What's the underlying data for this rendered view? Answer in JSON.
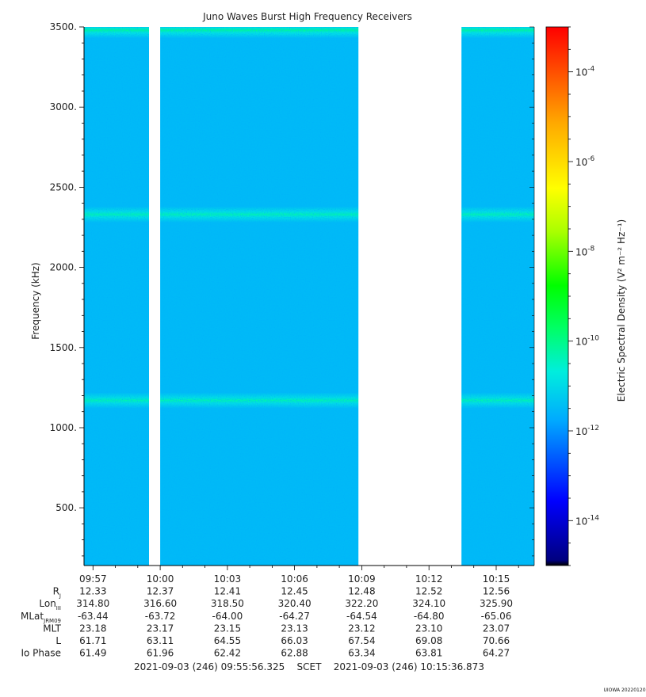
{
  "chart_data": {
    "type": "heatmap",
    "title": "Juno Waves Burst High Frequency Receivers",
    "ylabel": "Frequency (kHz)",
    "ylim": [
      140,
      3500
    ],
    "yticks": [
      {
        "value": 500,
        "label": "500."
      },
      {
        "value": 1000,
        "label": "1000."
      },
      {
        "value": 1500,
        "label": "1500."
      },
      {
        "value": 2000,
        "label": "2000."
      },
      {
        "value": 2500,
        "label": "2500."
      },
      {
        "value": 3000,
        "label": "3000."
      },
      {
        "value": 3500,
        "label": "3500."
      }
    ],
    "x_range_min": [
      56.6,
      76.7
    ],
    "xticks": [
      {
        "minute": 57,
        "label": "09:57"
      },
      {
        "minute": 60,
        "label": "10:00"
      },
      {
        "minute": 63,
        "label": "10:03"
      },
      {
        "minute": 66,
        "label": "10:06"
      },
      {
        "minute": 69,
        "label": "10:09"
      },
      {
        "minute": 72,
        "label": "10:12"
      },
      {
        "minute": 75,
        "label": "10:15"
      }
    ],
    "data_intervals_min": [
      [
        56.6,
        59.5
      ],
      [
        60.0,
        68.85
      ],
      [
        73.45,
        76.7
      ]
    ],
    "background_level_log10": -11.5,
    "emission_lines": [
      {
        "freq_khz": 1170,
        "level_log10": -10.3
      },
      {
        "freq_khz": 2330,
        "level_log10": -10.3
      },
      {
        "freq_khz": 3480,
        "level_log10": -10.1
      }
    ],
    "colorbar": {
      "label": "Electric Spectral Density (V² m⁻² Hz⁻¹)",
      "range_log10": [
        -15,
        -3
      ],
      "ticks": [
        {
          "exp": -4,
          "label": "-4"
        },
        {
          "exp": -6,
          "label": "-6"
        },
        {
          "exp": -8,
          "label": "-8"
        },
        {
          "exp": -10,
          "label": "-10"
        },
        {
          "exp": -12,
          "label": "-12"
        },
        {
          "exp": -14,
          "label": "-14"
        }
      ]
    },
    "ephemeris": {
      "labels": [
        "Rj",
        "LonIII",
        "MLatJRM09",
        "MLT",
        "L",
        "Io Phase"
      ],
      "rows": [
        [
          "12.33",
          "12.37",
          "12.41",
          "12.45",
          "12.48",
          "12.52",
          "12.56"
        ],
        [
          "314.80",
          "316.60",
          "318.50",
          "320.40",
          "322.20",
          "324.10",
          "325.90"
        ],
        [
          "-63.44",
          "-63.72",
          "-64.00",
          "-64.27",
          "-64.54",
          "-64.80",
          "-65.06"
        ],
        [
          "23.18",
          "23.17",
          "23.15",
          "23.13",
          "23.12",
          "23.10",
          "23.07"
        ],
        [
          "61.71",
          "63.11",
          "64.55",
          "66.03",
          "67.54",
          "69.08",
          "70.66"
        ],
        [
          "61.49",
          "61.96",
          "62.42",
          "62.88",
          "63.34",
          "63.81",
          "64.27"
        ]
      ]
    },
    "time_span": "2021-09-03 (246) 09:55:56.325    SCET    2021-09-03 (246) 10:15:36.873",
    "footer": "UIOWA 20220120"
  }
}
